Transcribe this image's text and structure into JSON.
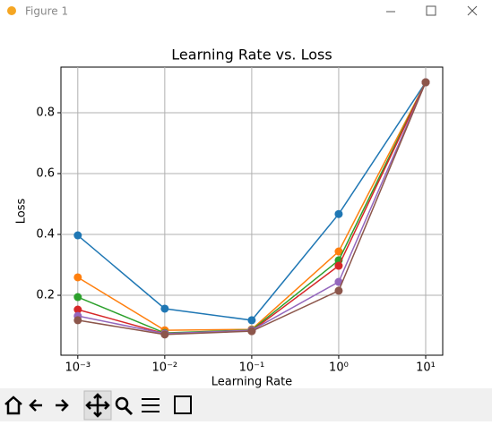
{
  "window": {
    "title": "Figure 1"
  },
  "chart_data": {
    "type": "line",
    "title": "Learning Rate vs. Loss",
    "x_label": "Learning Rate",
    "y_label": "Loss",
    "x": [
      0.001,
      0.01,
      0.1,
      1,
      10
    ],
    "xscale": "log",
    "grid": true,
    "xlim": [
      0.00064,
      15.7
    ],
    "ylim": [
      0.003,
      0.95
    ],
    "xticks": [
      {
        "value": 0.001,
        "label": "10⁻³"
      },
      {
        "value": 0.01,
        "label": "10⁻²"
      },
      {
        "value": 0.1,
        "label": "10⁻¹"
      },
      {
        "value": 1,
        "label": "10⁰"
      },
      {
        "value": 10,
        "label": "10¹"
      }
    ],
    "yticks": [
      0.2,
      0.4,
      0.6,
      0.8
    ],
    "series": [
      {
        "color": "#1f77b4",
        "values": [
          0.397,
          0.156,
          0.118,
          0.467,
          0.9
        ]
      },
      {
        "color": "#ff7f0e",
        "values": [
          0.259,
          0.085,
          0.088,
          0.344,
          0.9
        ]
      },
      {
        "color": "#2ca02c",
        "values": [
          0.194,
          0.076,
          0.086,
          0.315,
          0.9
        ]
      },
      {
        "color": "#d62728",
        "values": [
          0.153,
          0.074,
          0.083,
          0.297,
          0.9
        ]
      },
      {
        "color": "#9467bd",
        "values": [
          0.132,
          0.074,
          0.085,
          0.244,
          0.9
        ]
      },
      {
        "color": "#8c564b",
        "values": [
          0.118,
          0.071,
          0.082,
          0.215,
          0.9
        ]
      }
    ]
  }
}
